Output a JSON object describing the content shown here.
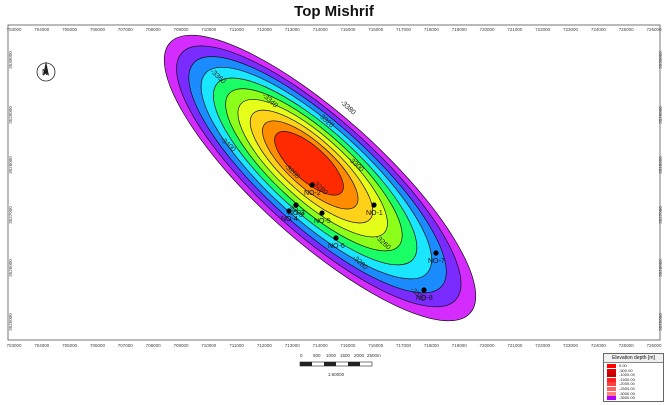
{
  "title": "Top Mishrif",
  "x_ticks": [
    "703000",
    "704000",
    "705000",
    "706000",
    "707000",
    "708000",
    "709000",
    "710000",
    "711000",
    "712000",
    "713000",
    "714000",
    "715000",
    "716000",
    "717000",
    "718000",
    "719000",
    "720000",
    "721000",
    "722000",
    "723000",
    "724000",
    "725000",
    "726000"
  ],
  "y_ticks": [
    "3530000",
    "3529000",
    "3528000",
    "3527000",
    "3526000",
    "3525000"
  ],
  "contours": [
    {
      "label": "-3260",
      "fill": "#ff2a00"
    },
    {
      "label": "-3280",
      "fill": "#ff8c00"
    },
    {
      "label": "-3300",
      "fill": "#ffd21a"
    },
    {
      "label": "-3320",
      "fill": "#e6ff1a"
    },
    {
      "label": "-3340",
      "fill": "#8cff1a"
    },
    {
      "label": "-3360",
      "fill": "#1aff66"
    },
    {
      "label": "-3380",
      "fill": "#1ae6ff"
    },
    {
      "label": "-3400",
      "fill": "#1a8cff"
    },
    {
      "label": "-3420",
      "fill": "#7a2bff"
    },
    {
      "label": "-3440",
      "fill": "#d42bff"
    }
  ],
  "contour_labels": [
    "-3260",
    "-3280",
    "-3300",
    "-3320",
    "-3340",
    "-3360",
    "-3380",
    "-3400"
  ],
  "wells": [
    {
      "label": "NO-1"
    },
    {
      "label": "NO-2"
    },
    {
      "label": "NO-3"
    },
    {
      "label": "NO-4"
    },
    {
      "label": "NO-5"
    },
    {
      "label": "NO-6"
    },
    {
      "label": "NO-7"
    },
    {
      "label": "NO-8"
    }
  ],
  "scale": {
    "labels": [
      "0",
      "500",
      "1000",
      "1500",
      "2000",
      "2500m"
    ],
    "ratio": "1:60000"
  },
  "legend": {
    "title": "Elevation depth [m]",
    "entries": [
      {
        "label": "0.00",
        "color": "#ff0000"
      },
      {
        "label": "-500.00",
        "color": "#e00000"
      },
      {
        "label": "-1000.00",
        "color": "#c40000"
      },
      {
        "label": "-1500.00",
        "color": "#ff2020"
      },
      {
        "label": "-2000.00",
        "color": "#ff4040"
      },
      {
        "label": "-2500.00",
        "color": "#ff6060"
      },
      {
        "label": "-3000.00",
        "color": "#ff8080"
      },
      {
        "label": "-3500.00",
        "color": "#b000ff"
      }
    ]
  },
  "north_arrow": {
    "label": "N"
  }
}
